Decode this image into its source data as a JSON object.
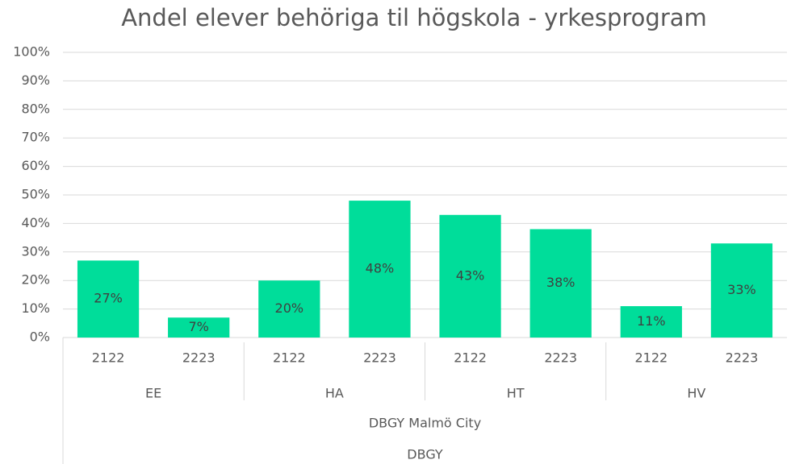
{
  "chart_data": {
    "type": "bar",
    "title": "Andel elever behöriga til högskola - yrkesprogram",
    "categories": [
      "2122",
      "2223",
      "2122",
      "2223",
      "2122",
      "2223",
      "2122",
      "2223"
    ],
    "category_groups": [
      "EE",
      "HA",
      "HT",
      "HV"
    ],
    "super_group": "DBGY Malmö City",
    "top_group": "DBGY",
    "values": [
      27,
      7,
      20,
      48,
      43,
      38,
      11,
      33
    ],
    "value_labels": [
      "27%",
      "7%",
      "20%",
      "48%",
      "43%",
      "38%",
      "11%",
      "33%"
    ],
    "color": "#00dd9a",
    "ylim": [
      0,
      100
    ],
    "yticks": [
      {
        "value": 0,
        "label": "0%"
      },
      {
        "value": 10,
        "label": "10%"
      },
      {
        "value": 20,
        "label": "20%"
      },
      {
        "value": 30,
        "label": "30%"
      },
      {
        "value": 40,
        "label": "40%"
      },
      {
        "value": 50,
        "label": "50%"
      },
      {
        "value": 60,
        "label": "60%"
      },
      {
        "value": 70,
        "label": "70%"
      },
      {
        "value": 80,
        "label": "80%"
      },
      {
        "value": 90,
        "label": "90%"
      },
      {
        "value": 100,
        "label": "100%"
      }
    ],
    "grid": true
  }
}
